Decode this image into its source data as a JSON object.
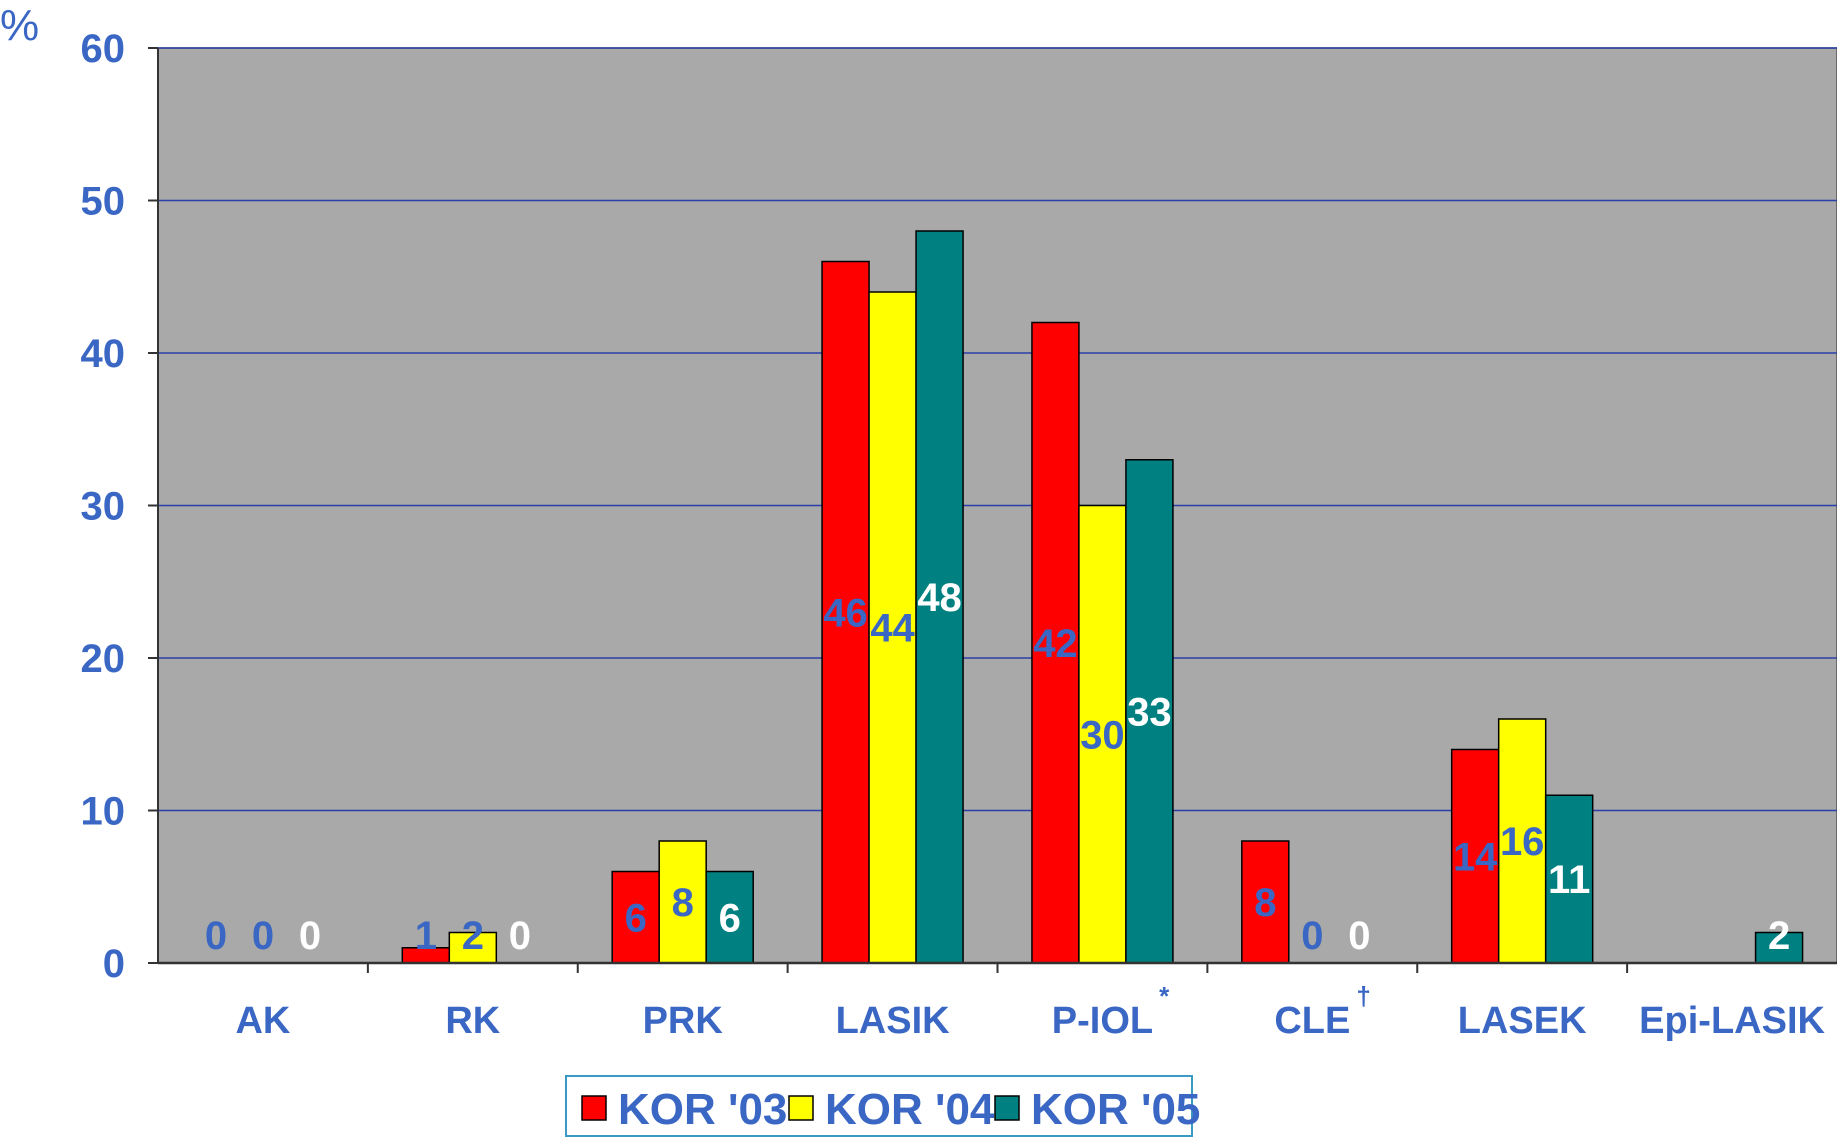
{
  "chart_data": {
    "type": "bar",
    "ylabel": "%",
    "ylim": [
      0,
      60
    ],
    "yticks": [
      0,
      10,
      20,
      30,
      40,
      50,
      60
    ],
    "categories": [
      "AK",
      "RK",
      "PRK",
      "LASIK",
      "P-IOL",
      "CLE",
      "LASEK",
      "Epi-LASIK"
    ],
    "category_marks": [
      "",
      "",
      "",
      "",
      "*",
      "†",
      "",
      ""
    ],
    "series": [
      {
        "name": "KOR '03",
        "color": "#ff0000",
        "label_color": "#3a66c4",
        "values": [
          0,
          1,
          6,
          46,
          42,
          8,
          14,
          null
        ]
      },
      {
        "name": "KOR '04",
        "color": "#ffff00",
        "label_color": "#3a66c4",
        "values": [
          0,
          2,
          8,
          44,
          30,
          0,
          16,
          null
        ]
      },
      {
        "name": "KOR '05",
        "color": "#008080",
        "label_color": "#ffffff",
        "values": [
          0,
          0,
          6,
          48,
          33,
          0,
          11,
          2
        ]
      }
    ],
    "grid": true,
    "legend": "bottom",
    "plot_background": "#a9a9a9"
  }
}
